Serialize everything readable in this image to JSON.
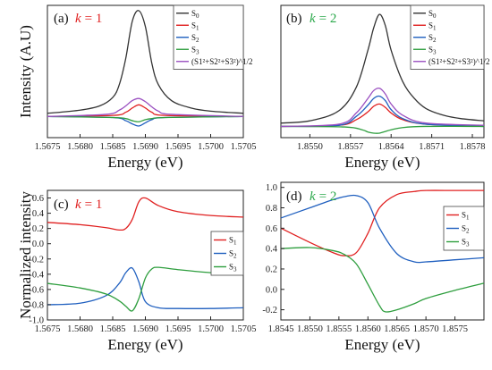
{
  "chart_data": [
    {
      "panel": "(a)",
      "type": "line",
      "annotation": {
        "k_symbol": "k",
        "k_value": "= 1",
        "k_color": "#e02020"
      },
      "xlabel": "Energy (eV)",
      "ylabel": "Intensity (A.U)",
      "xlim": [
        1.5675,
        1.5705
      ],
      "xticks": [
        1.5675,
        1.568,
        1.5685,
        1.569,
        1.5695,
        1.57,
        1.5705
      ],
      "xtick_labels": [
        "1.5675",
        "1.5680",
        "1.5685",
        "1.5690",
        "1.5695",
        "1.5700",
        "1.5705"
      ],
      "ylim": [
        -0.2,
        1.05
      ],
      "legend_position": "top-right",
      "series": [
        {
          "name": "S0",
          "color": "#333333",
          "x": [
            1.5675,
            1.568,
            1.5683,
            1.5685,
            1.5686,
            1.5687,
            1.5688,
            1.5689,
            1.569,
            1.5691,
            1.5692,
            1.5694,
            1.5697,
            1.57,
            1.5705
          ],
          "values": [
            0.03,
            0.06,
            0.1,
            0.18,
            0.3,
            0.55,
            0.9,
            1.0,
            0.85,
            0.5,
            0.3,
            0.15,
            0.08,
            0.05,
            0.03
          ]
        },
        {
          "name": "S1",
          "color": "#e02020",
          "x": [
            1.5675,
            1.5685,
            1.5687,
            1.5688,
            1.5689,
            1.569,
            1.5691,
            1.5693,
            1.5705
          ],
          "values": [
            0.0,
            0.01,
            0.04,
            0.08,
            0.11,
            0.08,
            0.04,
            0.01,
            0.0
          ]
        },
        {
          "name": "S2",
          "color": "#1f5fbf",
          "x": [
            1.5675,
            1.5685,
            1.5687,
            1.5688,
            1.5689,
            1.569,
            1.5691,
            1.5693,
            1.5705
          ],
          "values": [
            0.0,
            -0.01,
            -0.04,
            -0.07,
            -0.09,
            -0.06,
            -0.03,
            -0.01,
            0.0
          ]
        },
        {
          "name": "S3",
          "color": "#2e9e3e",
          "x": [
            1.5675,
            1.5685,
            1.5687,
            1.5688,
            1.5689,
            1.569,
            1.5691,
            1.5693,
            1.5705
          ],
          "values": [
            0.0,
            -0.01,
            -0.02,
            -0.04,
            -0.05,
            -0.03,
            -0.02,
            -0.01,
            0.0
          ]
        },
        {
          "name": "(S1²+S2²+S3²)^1/2",
          "color": "#9a4fc0",
          "x": [
            1.5675,
            1.5684,
            1.5686,
            1.5687,
            1.5688,
            1.5689,
            1.569,
            1.5691,
            1.5692,
            1.5694,
            1.5705
          ],
          "values": [
            0.0,
            0.02,
            0.06,
            0.1,
            0.15,
            0.17,
            0.14,
            0.09,
            0.05,
            0.02,
            0.0
          ]
        }
      ]
    },
    {
      "panel": "(b)",
      "type": "line",
      "annotation": {
        "k_symbol": "k",
        "k_value": "= 2",
        "k_color": "#2aa84a"
      },
      "xlabel": "Energy (eV)",
      "ylabel": "",
      "xlim": [
        1.8545,
        1.858
      ],
      "xticks": [
        1.855,
        1.8557,
        1.8564,
        1.8571,
        1.8578
      ],
      "xtick_labels": [
        "1.8550",
        "1.8557",
        "1.8564",
        "1.8571",
        "1.8578"
      ],
      "ylim": [
        -0.1,
        1.08
      ],
      "legend_position": "top-right",
      "series": [
        {
          "name": "S0",
          "color": "#333333",
          "x": [
            1.8545,
            1.855,
            1.8555,
            1.8558,
            1.856,
            1.8561,
            1.8562,
            1.8563,
            1.8564,
            1.8566,
            1.8568,
            1.857,
            1.8573,
            1.8576,
            1.858
          ],
          "values": [
            0.03,
            0.05,
            0.14,
            0.35,
            0.68,
            0.88,
            1.0,
            0.9,
            0.68,
            0.4,
            0.25,
            0.16,
            0.1,
            0.07,
            0.05
          ]
        },
        {
          "name": "S1",
          "color": "#e02020",
          "x": [
            1.8545,
            1.8555,
            1.8558,
            1.856,
            1.8561,
            1.8562,
            1.8563,
            1.8564,
            1.8566,
            1.857,
            1.858
          ],
          "values": [
            0.0,
            0.01,
            0.06,
            0.13,
            0.18,
            0.2,
            0.17,
            0.12,
            0.06,
            0.02,
            0.0
          ]
        },
        {
          "name": "S2",
          "color": "#1f5fbf",
          "x": [
            1.8545,
            1.8555,
            1.8558,
            1.856,
            1.8561,
            1.8562,
            1.8563,
            1.8564,
            1.8566,
            1.857,
            1.858
          ],
          "values": [
            0.0,
            0.01,
            0.09,
            0.19,
            0.25,
            0.27,
            0.23,
            0.15,
            0.07,
            0.02,
            0.0
          ]
        },
        {
          "name": "S3",
          "color": "#2e9e3e",
          "x": [
            1.8545,
            1.8556,
            1.8559,
            1.856,
            1.8561,
            1.8562,
            1.8563,
            1.8564,
            1.8566,
            1.857,
            1.858
          ],
          "values": [
            0.0,
            -0.005,
            -0.03,
            -0.05,
            -0.06,
            -0.06,
            -0.045,
            -0.03,
            -0.01,
            0.0,
            0.0
          ]
        },
        {
          "name": "(S1²+S2²+S3²)^1/2",
          "color": "#9a4fc0",
          "x": [
            1.8545,
            1.8555,
            1.8558,
            1.856,
            1.8561,
            1.8562,
            1.8563,
            1.8564,
            1.8566,
            1.857,
            1.858
          ],
          "values": [
            0.0,
            0.02,
            0.12,
            0.25,
            0.32,
            0.34,
            0.29,
            0.2,
            0.1,
            0.03,
            0.01
          ]
        }
      ]
    },
    {
      "panel": "(c)",
      "type": "line",
      "annotation": {
        "k_symbol": "k",
        "k_value": "= 1",
        "k_color": "#e02020"
      },
      "xlabel": "Energy (eV)",
      "ylabel": "Normalized intensity",
      "xlim": [
        1.5675,
        1.5705
      ],
      "xticks": [
        1.5675,
        1.568,
        1.5685,
        1.569,
        1.5695,
        1.57,
        1.5705
      ],
      "xtick_labels": [
        "1.5675",
        "1.5680",
        "1.5685",
        "1.5690",
        "1.5695",
        "1.5700",
        "1.5705"
      ],
      "ylim": [
        -1.0,
        0.7
      ],
      "yticks": [
        -1.0,
        -0.8,
        -0.6,
        -0.4,
        -0.2,
        0.0,
        0.2,
        0.4,
        0.6
      ],
      "ytick_labels": [
        "-1.0",
        "-0.8",
        "-0.6",
        "-0.4",
        "-0.2",
        "0.0",
        "0.2",
        "0.4",
        "0.6"
      ],
      "legend_position": "right",
      "series": [
        {
          "name": "S1",
          "color": "#e02020",
          "x": [
            1.5675,
            1.568,
            1.5684,
            1.5686,
            1.5687,
            1.5688,
            1.5689,
            1.569,
            1.5692,
            1.5695,
            1.57,
            1.5705
          ],
          "values": [
            0.28,
            0.25,
            0.21,
            0.18,
            0.2,
            0.32,
            0.55,
            0.6,
            0.5,
            0.42,
            0.37,
            0.35
          ]
        },
        {
          "name": "S2",
          "color": "#1f5fbf",
          "x": [
            1.5675,
            1.568,
            1.5684,
            1.5686,
            1.5687,
            1.5688,
            1.5689,
            1.569,
            1.5692,
            1.5695,
            1.57,
            1.5705
          ],
          "values": [
            -0.8,
            -0.78,
            -0.68,
            -0.52,
            -0.38,
            -0.32,
            -0.5,
            -0.76,
            -0.84,
            -0.85,
            -0.85,
            -0.84
          ]
        },
        {
          "name": "S3",
          "color": "#2e9e3e",
          "x": [
            1.5675,
            1.568,
            1.5684,
            1.5686,
            1.5687,
            1.5688,
            1.5689,
            1.569,
            1.5691,
            1.5692,
            1.5695,
            1.57,
            1.5705
          ],
          "values": [
            -0.52,
            -0.58,
            -0.66,
            -0.75,
            -0.82,
            -0.88,
            -0.72,
            -0.45,
            -0.33,
            -0.31,
            -0.34,
            -0.38,
            -0.4
          ]
        }
      ]
    },
    {
      "panel": "(d)",
      "type": "line",
      "annotation": {
        "k_symbol": "k",
        "k_value": "= 2",
        "k_color": "#2aa84a"
      },
      "xlabel": "Energy (eV)",
      "ylabel": "",
      "xlim": [
        1.8545,
        1.858
      ],
      "xticks": [
        1.8545,
        1.855,
        1.8555,
        1.856,
        1.8565,
        1.857,
        1.8575
      ],
      "xtick_labels": [
        "1.8545",
        "1.8550",
        "1.8555",
        "1.8560",
        "1.8565",
        "1.8570",
        "1.8575"
      ],
      "ylim": [
        -0.3,
        1.05
      ],
      "yticks": [
        -0.2,
        0.0,
        0.2,
        0.4,
        0.6,
        0.8,
        1.0
      ],
      "ytick_labels": [
        "-0.2",
        "0.0",
        "0.2",
        "0.4",
        "0.6",
        "0.8",
        "1.0"
      ],
      "legend_position": "right",
      "series": [
        {
          "name": "S1",
          "color": "#e02020",
          "x": [
            1.8545,
            1.855,
            1.8554,
            1.8556,
            1.8558,
            1.856,
            1.8562,
            1.8565,
            1.8568,
            1.857,
            1.8575,
            1.858
          ],
          "values": [
            0.6,
            0.46,
            0.36,
            0.33,
            0.36,
            0.55,
            0.8,
            0.93,
            0.96,
            0.97,
            0.97,
            0.97
          ]
        },
        {
          "name": "S2",
          "color": "#1f5fbf",
          "x": [
            1.8545,
            1.855,
            1.8554,
            1.8556,
            1.8558,
            1.856,
            1.8562,
            1.8565,
            1.8568,
            1.857,
            1.8575,
            1.858
          ],
          "values": [
            0.7,
            0.8,
            0.88,
            0.91,
            0.92,
            0.85,
            0.6,
            0.35,
            0.27,
            0.27,
            0.29,
            0.31
          ]
        },
        {
          "name": "S3",
          "color": "#2e9e3e",
          "x": [
            1.8545,
            1.855,
            1.8554,
            1.8556,
            1.8558,
            1.856,
            1.8562,
            1.8563,
            1.8565,
            1.8568,
            1.857,
            1.8575,
            1.858
          ],
          "values": [
            0.4,
            0.41,
            0.38,
            0.34,
            0.25,
            0.05,
            -0.16,
            -0.22,
            -0.2,
            -0.14,
            -0.09,
            -0.01,
            0.06
          ]
        }
      ]
    }
  ]
}
